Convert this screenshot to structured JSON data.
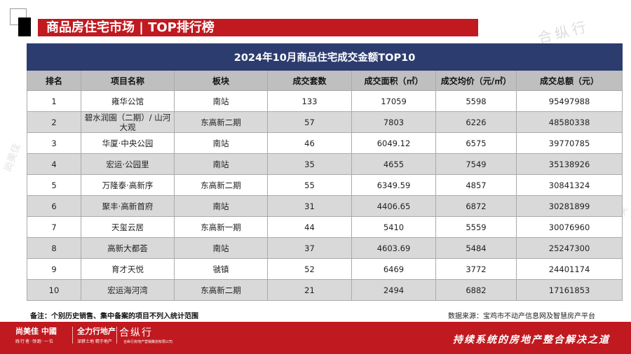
{
  "header": {
    "title": "商品房住宅市场 | TOP排行榜"
  },
  "watermarks": {
    "top_right": "合纵行",
    "left": "尚美佳",
    "right": "尚美佳"
  },
  "table": {
    "caption": "2024年10月商品住宅成交金额TOP10",
    "columns": [
      "排名",
      "项目名称",
      "板块",
      "成交套数",
      "成交面积（㎡）",
      "成交均价（元/㎡）",
      "成交总额（元）"
    ],
    "rows": [
      [
        "1",
        "雍华公馆",
        "南站",
        "133",
        "17059",
        "5598",
        "95497988"
      ],
      [
        "2",
        "碧水润園（二期）/ 山河大观",
        "东高新二期",
        "57",
        "7803",
        "6226",
        "48580338"
      ],
      [
        "3",
        "华厦·中央公园",
        "南站",
        "46",
        "6049.12",
        "6575",
        "39770785"
      ],
      [
        "4",
        "宏运·公园里",
        "南站",
        "35",
        "4655",
        "7549",
        "35138926"
      ],
      [
        "5",
        "万隆泰·高新序",
        "东高新二期",
        "55",
        "6349.59",
        "4857",
        "30841324"
      ],
      [
        "6",
        "聚丰·高新首府",
        "南站",
        "31",
        "4406.65",
        "6872",
        "30281899"
      ],
      [
        "7",
        "天玺云居",
        "东高新一期",
        "44",
        "5410",
        "5559",
        "30076960"
      ],
      [
        "8",
        "高新大都荟",
        "南站",
        "37",
        "4603.69",
        "5484",
        "25247300"
      ],
      [
        "9",
        "育才天悦",
        "虢镇",
        "52",
        "6469",
        "3772",
        "24401174"
      ],
      [
        "10",
        "宏运海河湾",
        "东高新二期",
        "21",
        "2494",
        "6882",
        "17161853"
      ]
    ]
  },
  "notes": {
    "remark": "备注：个别历史销售、集中备案的项目不列入统计范围",
    "source": "数据来源：宝鸡市不动产信息网及智慧房产平台"
  },
  "footer": {
    "logo1": "尚美佳 中國",
    "logo1_sub": "践行者·领跑·一位",
    "logo2": "全力行地产",
    "logo2_sub": "深耕土地 精于地产",
    "logo3": "合纵行",
    "logo3_sub": "合纵行房地产营销策划有限公司",
    "slogan": "持续系统的房地产整合解决之道"
  },
  "colors": {
    "brand_red": "#c0191f",
    "table_navy": "#2c3c6f",
    "header_gray": "#bfbfbf",
    "row_alt": "#d9d9d9"
  }
}
